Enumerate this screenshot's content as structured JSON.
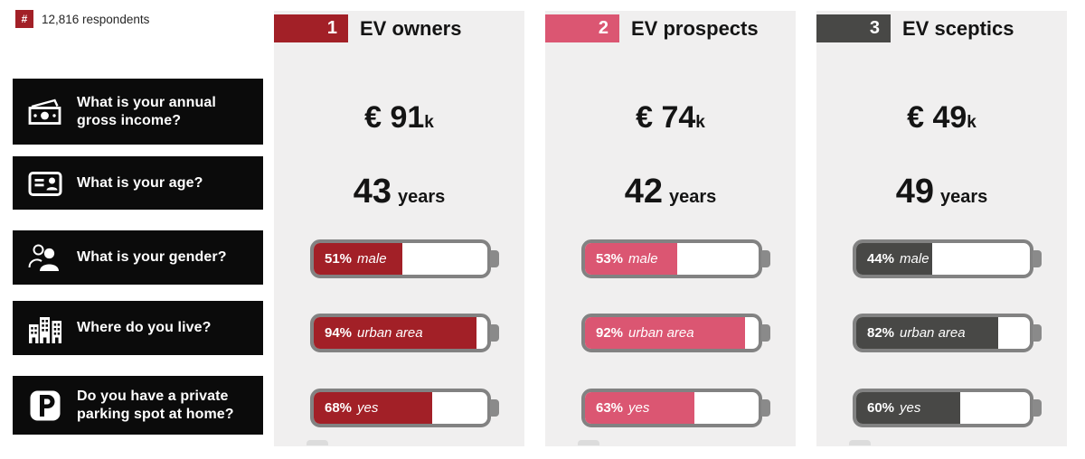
{
  "header": {
    "hash_symbol": "#",
    "respondents_label": "12,816 respondents"
  },
  "questions": [
    {
      "icon": "banknote-icon",
      "text": "What is your annual gross income?"
    },
    {
      "icon": "id-card-icon",
      "text": "What is your age?"
    },
    {
      "icon": "people-icon",
      "text": "What is your gender?"
    },
    {
      "icon": "buildings-icon",
      "text": "Where do you live?"
    },
    {
      "icon": "parking-icon",
      "text": "Do you have a private parking spot at home?"
    }
  ],
  "colors": {
    "owners_red": "#a22027",
    "prospects_pink": "#db5672",
    "sceptics_gray": "#484846",
    "hash_badge_red": "#a22027",
    "card_background": "#f0efef",
    "battery_border": "#828282",
    "question_box_black": "#0b0b0b"
  },
  "chart_data": {
    "type": "bar",
    "title": "",
    "respondents": 12816,
    "legend_position": "top",
    "units": {
      "income_prefix": "€",
      "income_suffix": "k",
      "age_suffix": "years",
      "percent_suffix": "%"
    },
    "row_questions": [
      "What is your annual gross income?",
      "What is your age?",
      "What is your gender?",
      "Where do you live?",
      "Do you have a private parking spot at home?"
    ],
    "groups": [
      {
        "rank": "1",
        "name": "EV owners",
        "color": "#a22027",
        "income_k": 91,
        "age_years": 43,
        "batteries": [
          {
            "pct": 51,
            "label": "male"
          },
          {
            "pct": 94,
            "label": "urban area"
          },
          {
            "pct": 68,
            "label": "yes"
          }
        ]
      },
      {
        "rank": "2",
        "name": "EV prospects",
        "color": "#db5672",
        "income_k": 74,
        "age_years": 42,
        "batteries": [
          {
            "pct": 53,
            "label": "male"
          },
          {
            "pct": 92,
            "label": "urban area"
          },
          {
            "pct": 63,
            "label": "yes"
          }
        ]
      },
      {
        "rank": "3",
        "name": "EV sceptics",
        "color": "#484846",
        "income_k": 49,
        "age_years": 49,
        "batteries": [
          {
            "pct": 44,
            "label": "male"
          },
          {
            "pct": 82,
            "label": "urban area"
          },
          {
            "pct": 60,
            "label": "yes"
          }
        ]
      }
    ]
  }
}
